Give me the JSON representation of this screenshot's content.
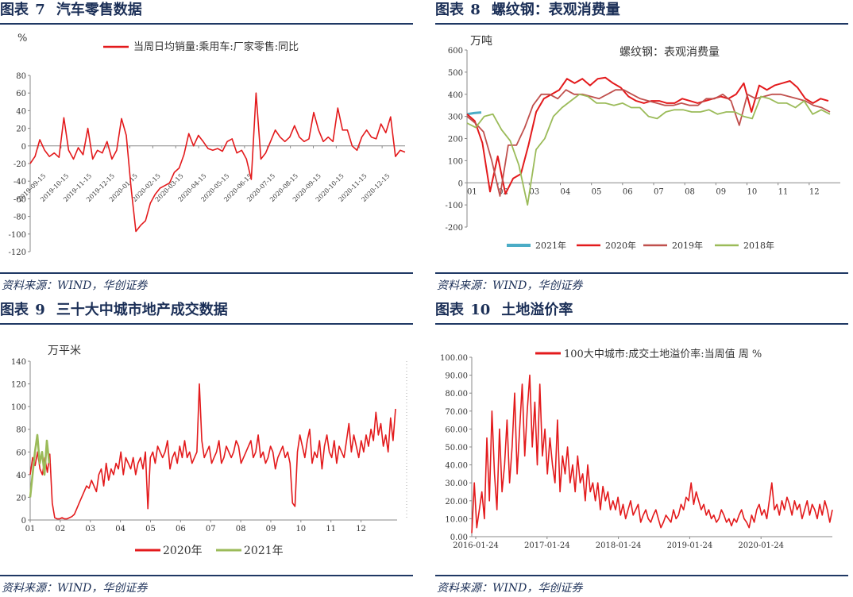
{
  "colors": {
    "navy": "#1f3864",
    "red": "#e31a1c",
    "red_light": "#c0504d",
    "green": "#9bbb59",
    "teal": "#4bacc6",
    "axis": "#888888",
    "grid": "#d9d9d9"
  },
  "panels": [
    {
      "id": "fig7",
      "title_prefix": "图表",
      "title_num": "7",
      "title_text": "汽车零售数据",
      "source": "资料来源：WIND，华创证券"
    },
    {
      "id": "fig8",
      "title_prefix": "图表",
      "title_num": "8",
      "title_text": "螺纹钢：表观消费量",
      "source": "资料来源：WIND，华创证券"
    },
    {
      "id": "fig9",
      "title_prefix": "图表",
      "title_num": "9",
      "title_text": "三十大中城市地产成交数据",
      "source": "资料来源：WIND，华创证券"
    },
    {
      "id": "fig10",
      "title_prefix": "图表",
      "title_num": "10",
      "title_text": "土地溢价率",
      "source": "资料来源：WIND，华创证券"
    }
  ],
  "chart_data": [
    {
      "id": "fig7",
      "type": "line",
      "unit": "%",
      "legend": [
        "当周日均销量:乘用车:厂家零售:同比"
      ],
      "ylim": [
        -120,
        80
      ],
      "yticks": [
        80,
        60,
        40,
        20,
        0,
        -20,
        -40,
        -60,
        -80,
        -100,
        -120
      ],
      "xticks": [
        "2019-09-15",
        "2019-10-15",
        "2019-11-15",
        "2019-12-15",
        "2020-01-15",
        "2020-02-15",
        "2020-03-15",
        "2020-04-15",
        "2020-05-15",
        "2020-06-15",
        "2020-07-15",
        "2020-08-15",
        "2020-09-15",
        "2020-10-15",
        "2020-11-15",
        "2020-12-15"
      ],
      "series": [
        {
          "name": "当周日均销量:乘用车:厂家零售:同比",
          "color": "#e31a1c",
          "values": [
            -20,
            -12,
            7,
            -5,
            -12,
            -8,
            -13,
            32,
            -5,
            -15,
            -2,
            -10,
            20,
            -15,
            -5,
            -8,
            5,
            -15,
            -5,
            31,
            12,
            -48,
            -97,
            -90,
            -85,
            -65,
            -55,
            -48,
            -45,
            -42,
            -30,
            -25,
            -10,
            14,
            0,
            12,
            5,
            -3,
            -5,
            -3,
            -6,
            5,
            8,
            -8,
            -5,
            -15,
            -38,
            60,
            -15,
            -8,
            5,
            18,
            10,
            5,
            10,
            23,
            10,
            5,
            8,
            38,
            18,
            5,
            10,
            5,
            43,
            18,
            18,
            0,
            -5,
            10,
            18,
            10,
            8,
            25,
            15,
            33,
            -12,
            -5,
            -7
          ]
        }
      ]
    },
    {
      "id": "fig8",
      "type": "line",
      "unit": "万吨",
      "title": "螺纹钢：表观消费量",
      "ylim": [
        -200,
        600
      ],
      "yticks": [
        600,
        500,
        400,
        300,
        200,
        100,
        0,
        -100,
        -200
      ],
      "xticks": [
        "01",
        "02",
        "03",
        "04",
        "05",
        "06",
        "07",
        "08",
        "09",
        "10",
        "11",
        "12"
      ],
      "series": [
        {
          "name": "2021年",
          "color": "#4bacc6",
          "values": [
            310,
            315,
            318
          ]
        },
        {
          "name": "2020年",
          "color": "#e31a1c",
          "values": [
            310,
            280,
            180,
            -40,
            120,
            -50,
            20,
            40,
            170,
            320,
            380,
            400,
            420,
            470,
            450,
            470,
            440,
            470,
            475,
            450,
            430,
            390,
            370,
            360,
            370,
            370,
            360,
            360,
            380,
            370,
            360,
            370,
            380,
            390,
            380,
            400,
            450,
            320,
            440,
            420,
            440,
            450,
            460,
            430,
            380,
            360,
            380,
            370
          ]
        },
        {
          "name": "2019年",
          "color": "#c0504d",
          "values": [
            300,
            270,
            230,
            100,
            -60,
            170,
            170,
            250,
            350,
            400,
            400,
            380,
            420,
            400,
            400,
            390,
            380,
            400,
            420,
            420,
            400,
            380,
            370,
            360,
            350,
            350,
            360,
            350,
            350,
            380,
            380,
            400,
            370,
            260,
            400,
            380,
            390,
            400,
            400,
            390,
            380,
            370,
            350,
            340,
            320
          ]
        },
        {
          "name": "2018年",
          "color": "#9bbb59",
          "values": [
            270,
            250,
            300,
            310,
            240,
            190,
            80,
            -100,
            150,
            200,
            300,
            340,
            370,
            400,
            390,
            360,
            360,
            350,
            360,
            340,
            340,
            300,
            290,
            320,
            330,
            330,
            320,
            320,
            330,
            310,
            320,
            320,
            300,
            290,
            390,
            380,
            360,
            360,
            340,
            370,
            310,
            330,
            310
          ]
        }
      ]
    },
    {
      "id": "fig9",
      "type": "line",
      "unit": "万平米",
      "ylim": [
        0,
        140
      ],
      "yticks": [
        140,
        120,
        100,
        80,
        60,
        40,
        20,
        0
      ],
      "xticks": [
        "01",
        "02",
        "03",
        "04",
        "05",
        "06",
        "07",
        "08",
        "09",
        "10",
        "11",
        "12"
      ],
      "series": [
        {
          "name": "2020年",
          "color": "#e31a1c",
          "values": [
            40,
            55,
            48,
            60,
            45,
            40,
            55,
            42,
            58,
            15,
            2,
            1,
            1,
            2,
            1,
            1,
            2,
            3,
            5,
            10,
            15,
            20,
            25,
            30,
            28,
            35,
            30,
            25,
            40,
            45,
            30,
            50,
            35,
            45,
            40,
            50,
            45,
            60,
            40,
            55,
            50,
            45,
            55,
            40,
            50,
            55,
            45,
            60,
            10,
            55,
            60,
            50,
            65,
            60,
            55,
            60,
            70,
            45,
            55,
            60,
            50,
            65,
            55,
            70,
            55,
            60,
            50,
            55,
            60,
            120,
            70,
            55,
            60,
            65,
            50,
            55,
            60,
            70,
            50,
            55,
            65,
            60,
            55,
            60,
            70,
            65,
            50,
            55,
            60,
            65,
            70,
            55,
            60,
            75,
            55,
            60,
            50,
            55,
            65,
            60,
            45,
            55,
            60,
            65,
            55,
            60,
            50,
            15,
            12,
            60,
            75,
            65,
            55,
            70,
            80,
            50,
            60,
            55,
            70,
            45,
            65,
            75,
            60,
            55,
            70,
            50,
            65,
            60,
            55,
            70,
            85,
            60,
            75,
            65,
            55,
            70,
            60,
            75,
            65,
            80,
            70,
            95,
            75,
            85,
            65,
            75,
            60,
            90,
            70,
            98
          ]
        },
        {
          "name": "2021年",
          "color": "#9bbb59",
          "values": [
            20,
            40,
            60,
            75,
            50,
            60,
            40,
            70,
            50
          ]
        }
      ]
    },
    {
      "id": "fig10",
      "type": "line",
      "legend": [
        "100大中城市:成交土地溢价率:当周值 周 %"
      ],
      "ylim": [
        0,
        100
      ],
      "yticks": [
        "100.00",
        "90.00",
        "80.00",
        "70.00",
        "60.00",
        "50.00",
        "40.00",
        "30.00",
        "20.00",
        "10.00",
        "0.00"
      ],
      "xticks": [
        "2016-01-24",
        "2017-01-24",
        "2018-01-24",
        "2019-01-24",
        "2020-01-24"
      ],
      "series": [
        {
          "name": "100大中城市:成交土地溢价率:当周值 周 %",
          "color": "#e31a1c",
          "values": [
            2,
            30,
            5,
            15,
            25,
            10,
            55,
            20,
            70,
            35,
            15,
            60,
            25,
            40,
            65,
            30,
            50,
            80,
            35,
            60,
            85,
            45,
            70,
            90,
            50,
            75,
            40,
            85,
            45,
            60,
            35,
            55,
            40,
            30,
            65,
            25,
            45,
            35,
            50,
            30,
            40,
            25,
            45,
            30,
            35,
            20,
            40,
            25,
            30,
            20,
            30,
            15,
            28,
            20,
            25,
            15,
            20,
            15,
            22,
            12,
            18,
            10,
            15,
            20,
            12,
            15,
            18,
            8,
            12,
            15,
            10,
            8,
            12,
            15,
            10,
            5,
            8,
            12,
            10,
            8,
            15,
            10,
            12,
            18,
            15,
            22,
            20,
            30,
            18,
            25,
            20,
            15,
            18,
            12,
            15,
            10,
            12,
            8,
            10,
            15,
            12,
            8,
            10,
            6,
            10,
            8,
            12,
            15,
            10,
            8,
            5,
            12,
            8,
            15,
            18,
            12,
            15,
            10,
            20,
            30,
            15,
            18,
            12,
            20,
            15,
            22,
            18,
            12,
            20,
            15,
            18,
            10,
            15,
            20,
            12,
            18,
            15,
            10,
            18,
            12,
            20,
            15,
            8,
            15
          ]
        }
      ]
    }
  ]
}
